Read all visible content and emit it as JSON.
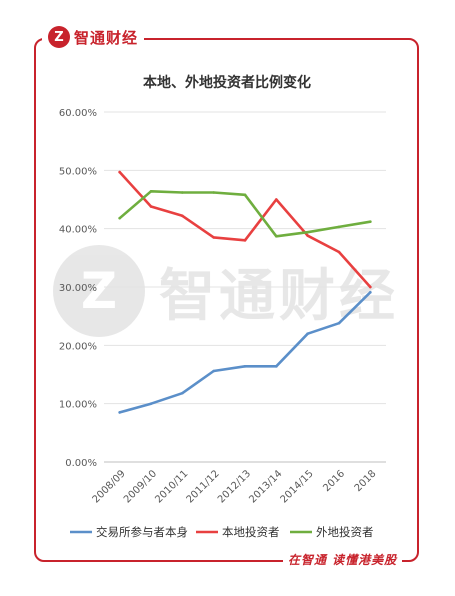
{
  "brand": {
    "logo_letter": "Z",
    "name": "智通财经",
    "watermark": "智通财经",
    "tagline": "在智通  读懂港美股"
  },
  "colors": {
    "brand_red": "#c8232c"
  },
  "chart_data": {
    "type": "line",
    "title": "本地、外地投资者比例变化",
    "categories": [
      "2008/09",
      "2009/10",
      "2010/11",
      "2011/12",
      "2012/13",
      "2013/14",
      "2014/15",
      "2016",
      "2018"
    ],
    "y_ticks": [
      "0.00%",
      "10.00%",
      "20.00%",
      "30.00%",
      "40.00%",
      "50.00%",
      "60.00%"
    ],
    "ylim": [
      0,
      60
    ],
    "grid": true,
    "legend_position": "bottom",
    "series": [
      {
        "name": "交易所参与者本身",
        "color": "#5b8fc9",
        "values": [
          8.5,
          10.0,
          11.8,
          15.6,
          16.4,
          16.4,
          22.0,
          23.8,
          29.1
        ]
      },
      {
        "name": "本地投资者",
        "color": "#e84040",
        "values": [
          49.7,
          43.8,
          42.2,
          38.5,
          38.0,
          45.0,
          38.8,
          36.0,
          30.0
        ]
      },
      {
        "name": "外地投资者",
        "color": "#6fae3f",
        "values": [
          41.8,
          46.4,
          46.2,
          46.2,
          45.8,
          38.7,
          39.4,
          40.3,
          41.2
        ]
      }
    ]
  }
}
